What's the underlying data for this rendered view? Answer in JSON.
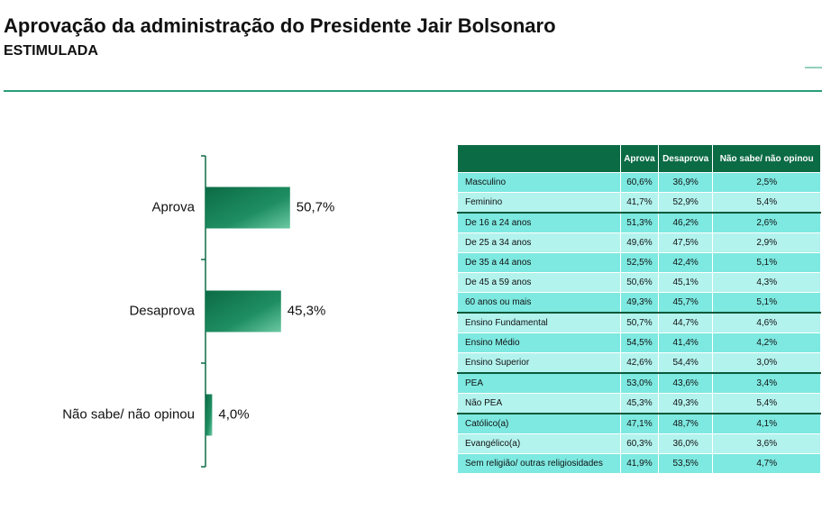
{
  "header": {
    "title": "Aprovação da administração do Presidente Jair Bolsonaro",
    "subtitle": "ESTIMULADA"
  },
  "chart_data": {
    "type": "bar",
    "orientation": "horizontal",
    "categories": [
      "Aprova",
      "Desaprova",
      "Não sabe/ não opinou"
    ],
    "values": [
      50.7,
      45.3,
      4.0
    ],
    "value_labels": [
      "50,7%",
      "45,3%",
      "4,0%"
    ],
    "color": "#0b6b45"
  },
  "table": {
    "header": [
      "Aprova",
      "Desaprova",
      "Não sabe/ não opinou"
    ],
    "groups": [
      [
        [
          "Masculino",
          "60,6%",
          "36,9%",
          "2,5%"
        ],
        [
          "Feminino",
          "41,7%",
          "52,9%",
          "5,4%"
        ]
      ],
      [
        [
          "De 16 a 24 anos",
          "51,3%",
          "46,2%",
          "2,6%"
        ],
        [
          "De 25 a 34 anos",
          "49,6%",
          "47,5%",
          "2,9%"
        ],
        [
          "De 35 a 44 anos",
          "52,5%",
          "42,4%",
          "5,1%"
        ],
        [
          "De 45 a 59 anos",
          "50,6%",
          "45,1%",
          "4,3%"
        ],
        [
          "60 anos ou mais",
          "49,3%",
          "45,7%",
          "5,1%"
        ]
      ],
      [
        [
          "Ensino Fundamental",
          "50,7%",
          "44,7%",
          "4,6%"
        ],
        [
          "Ensino Médio",
          "54,5%",
          "41,4%",
          "4,2%"
        ],
        [
          "Ensino Superior",
          "42,6%",
          "54,4%",
          "3,0%"
        ]
      ],
      [
        [
          "PEA",
          "53,0%",
          "43,6%",
          "3,4%"
        ],
        [
          "Não PEA",
          "45,3%",
          "49,3%",
          "5,4%"
        ]
      ],
      [
        [
          "Católico(a)",
          "47,1%",
          "48,7%",
          "4,1%"
        ],
        [
          "Evangélico(a)",
          "60,3%",
          "36,0%",
          "3,6%"
        ],
        [
          "Sem religião/ outras religiosidades",
          "41,9%",
          "53,5%",
          "4,7%"
        ]
      ]
    ]
  }
}
